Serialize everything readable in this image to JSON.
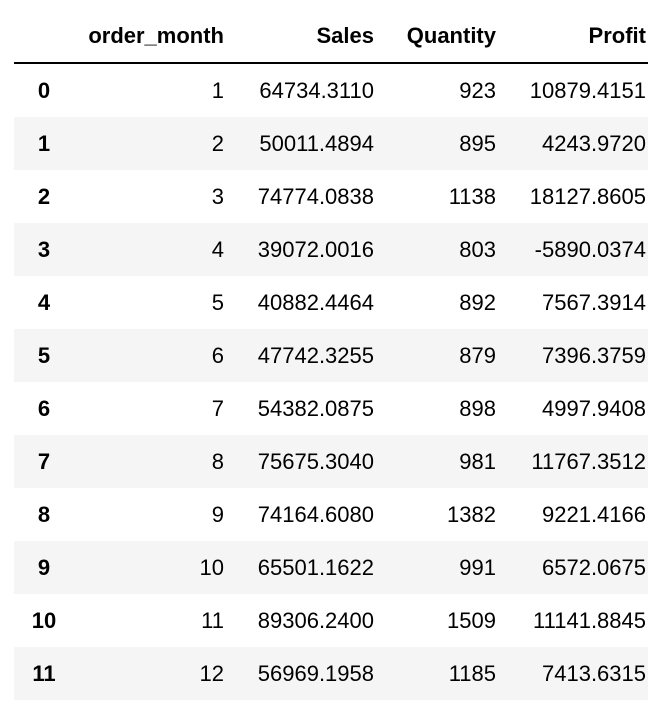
{
  "table": {
    "columns": [
      "",
      "order_month",
      "Sales",
      "Quantity",
      "Profit"
    ],
    "rows": [
      {
        "index": "0",
        "order_month": "1",
        "sales": "64734.3110",
        "quantity": "923",
        "profit": "10879.4151"
      },
      {
        "index": "1",
        "order_month": "2",
        "sales": "50011.4894",
        "quantity": "895",
        "profit": "4243.9720"
      },
      {
        "index": "2",
        "order_month": "3",
        "sales": "74774.0838",
        "quantity": "1138",
        "profit": "18127.8605"
      },
      {
        "index": "3",
        "order_month": "4",
        "sales": "39072.0016",
        "quantity": "803",
        "profit": "-5890.0374"
      },
      {
        "index": "4",
        "order_month": "5",
        "sales": "40882.4464",
        "quantity": "892",
        "profit": "7567.3914"
      },
      {
        "index": "5",
        "order_month": "6",
        "sales": "47742.3255",
        "quantity": "879",
        "profit": "7396.3759"
      },
      {
        "index": "6",
        "order_month": "7",
        "sales": "54382.0875",
        "quantity": "898",
        "profit": "4997.9408"
      },
      {
        "index": "7",
        "order_month": "8",
        "sales": "75675.3040",
        "quantity": "981",
        "profit": "11767.3512"
      },
      {
        "index": "8",
        "order_month": "9",
        "sales": "74164.6080",
        "quantity": "1382",
        "profit": "9221.4166"
      },
      {
        "index": "9",
        "order_month": "10",
        "sales": "65501.1622",
        "quantity": "991",
        "profit": "6572.0675"
      },
      {
        "index": "10",
        "order_month": "11",
        "sales": "89306.2400",
        "quantity": "1509",
        "profit": "11141.8845"
      },
      {
        "index": "11",
        "order_month": "12",
        "sales": "56969.1958",
        "quantity": "1185",
        "profit": "7413.6315"
      }
    ]
  }
}
